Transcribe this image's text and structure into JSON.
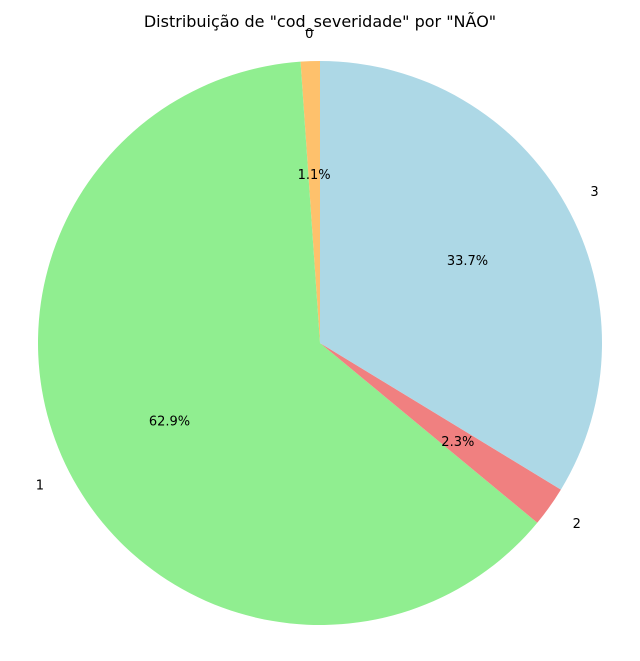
{
  "chart_data": {
    "type": "pie",
    "title": "Distribuição de \"cod_severidade\" por \"NÃO\"",
    "start_angle_deg": 90,
    "direction": "counterclockwise",
    "slices": [
      {
        "label": "0",
        "value": 1.1,
        "pct_label": "1.1%",
        "color": "#fec16c"
      },
      {
        "label": "1",
        "value": 62.9,
        "pct_label": "62.9%",
        "color": "#90ee90"
      },
      {
        "label": "2",
        "value": 2.3,
        "pct_label": "2.3%",
        "color": "#f08080"
      },
      {
        "label": "3",
        "value": 33.7,
        "pct_label": "33.7%",
        "color": "#add8e6"
      }
    ]
  }
}
